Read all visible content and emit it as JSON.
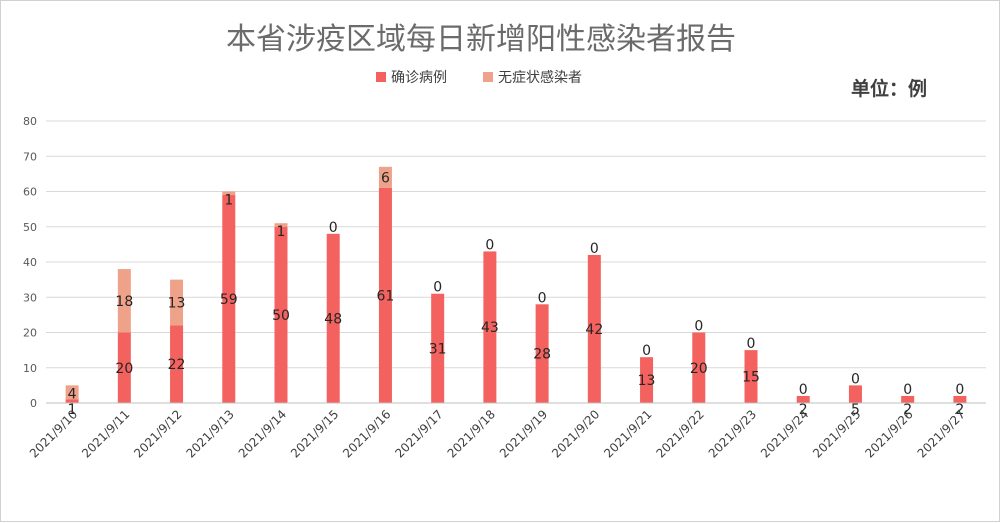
{
  "chart_data": {
    "type": "bar",
    "stacked": true,
    "title": "本省涉疫区域每日新增阳性感染者报告",
    "unit_label": "单位：例",
    "xlabel": "",
    "ylabel": "",
    "ylim": [
      0,
      80
    ],
    "yticks": [
      0,
      10,
      20,
      30,
      40,
      50,
      60,
      70,
      80
    ],
    "grid": true,
    "legend_position": "top",
    "categories": [
      "2021/9/10",
      "2021/9/11",
      "2021/9/12",
      "2021/9/13",
      "2021/9/14",
      "2021/9/15",
      "2021/9/16",
      "2021/9/17",
      "2021/9/18",
      "2021/9/19",
      "2021/9/20",
      "2021/9/21",
      "2021/9/22",
      "2021/9/23",
      "2021/9/24",
      "2021/9/25",
      "2021/9/26",
      "2021/9/27"
    ],
    "series": [
      {
        "name": "确诊病例",
        "color": "#f4625f",
        "values": [
          1,
          20,
          22,
          59,
          50,
          48,
          61,
          31,
          43,
          28,
          42,
          13,
          20,
          15,
          2,
          5,
          2,
          2
        ]
      },
      {
        "name": "无症状感染者",
        "color": "#efa28a",
        "values": [
          4,
          18,
          13,
          1,
          1,
          0,
          6,
          0,
          0,
          0,
          0,
          0,
          0,
          0,
          0,
          0,
          0,
          0
        ]
      }
    ]
  }
}
